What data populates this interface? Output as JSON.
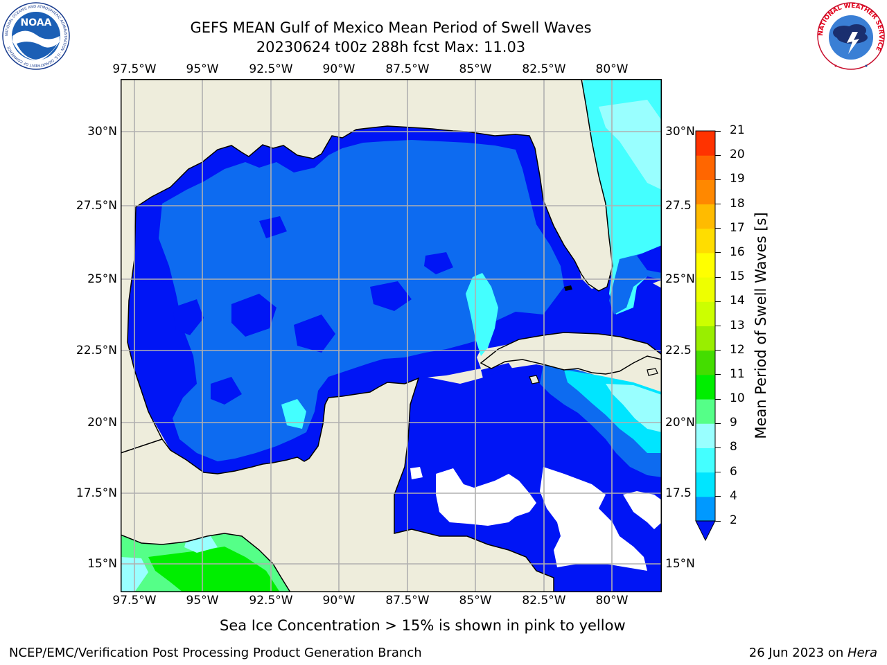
{
  "header": {
    "title_line1": "GEFS MEAN Gulf of Mexico Mean Period of Swell Waves",
    "title_line2": "20230624 t00z 288h fcst   Max: 11.03"
  },
  "logos": {
    "noaa_text": "NOAA",
    "noaa_ring_text": "NATIONAL OCEANIC AND ATMOSPHERIC ADMINISTRATION · U.S. DEPARTMENT OF COMMERCE",
    "nws_ring_text": "NATIONAL WEATHER SERVICE"
  },
  "map": {
    "lon_labels": [
      "97.5°W",
      "95°W",
      "92.5°W",
      "90°W",
      "87.5°W",
      "85°W",
      "82.5°W",
      "80°W"
    ],
    "lat_labels_left": [
      "30°N",
      "27.5°N",
      "25°N",
      "22.5°N",
      "20°N",
      "17.5°N",
      "15°N"
    ],
    "lat_labels_right": [
      "30°N",
      "27.5",
      "25°N",
      "22.5",
      "20°N",
      "17.5",
      "15°N"
    ],
    "lon_range": [
      -98,
      -78.2
    ],
    "lat_range": [
      14,
      31.9
    ],
    "land_color": "#eeeddc",
    "ocean_dominant": "#0015f5",
    "grid_color": "#b0b0b0"
  },
  "colorbar": {
    "label": "Mean Period of Swell Waves [s]",
    "ticks": [
      "2",
      "4",
      "6",
      "8",
      "9",
      "10",
      "11",
      "12",
      "13",
      "14",
      "15",
      "16",
      "17",
      "18",
      "19",
      "20",
      "21"
    ],
    "colors": [
      "#0055ff",
      "#0099ff",
      "#00e5ff",
      "#44ffff",
      "#99ffff",
      "#55ff88",
      "#00ee00",
      "#44dd00",
      "#99ee00",
      "#ccff00",
      "#eeff00",
      "#ffff00",
      "#ffdd00",
      "#ffbb00",
      "#ff8800",
      "#ff6600",
      "#ff3300",
      "#ff0000"
    ],
    "extend_color": "#0015f5"
  },
  "chart_data": {
    "type": "heatmap",
    "title": "GEFS MEAN Gulf of Mexico Mean Period of Swell Waves",
    "subtitle": "20230624 t00z 288h fcst   Max: 11.03",
    "colorbar_label": "Mean Period of Swell Waves [s]",
    "colorbar_levels": [
      2,
      4,
      6,
      8,
      9,
      10,
      11,
      12,
      13,
      14,
      15,
      16,
      17,
      18,
      19,
      20,
      21
    ],
    "max_value": 11.03
  },
  "footer": {
    "note": "Sea Ice Concentration > 15% is shown in pink to yellow",
    "left": "NCEP/EMC/Verification Post Processing Product Generation Branch",
    "date": "26 Jun 2023 on ",
    "machine": "Hera"
  }
}
